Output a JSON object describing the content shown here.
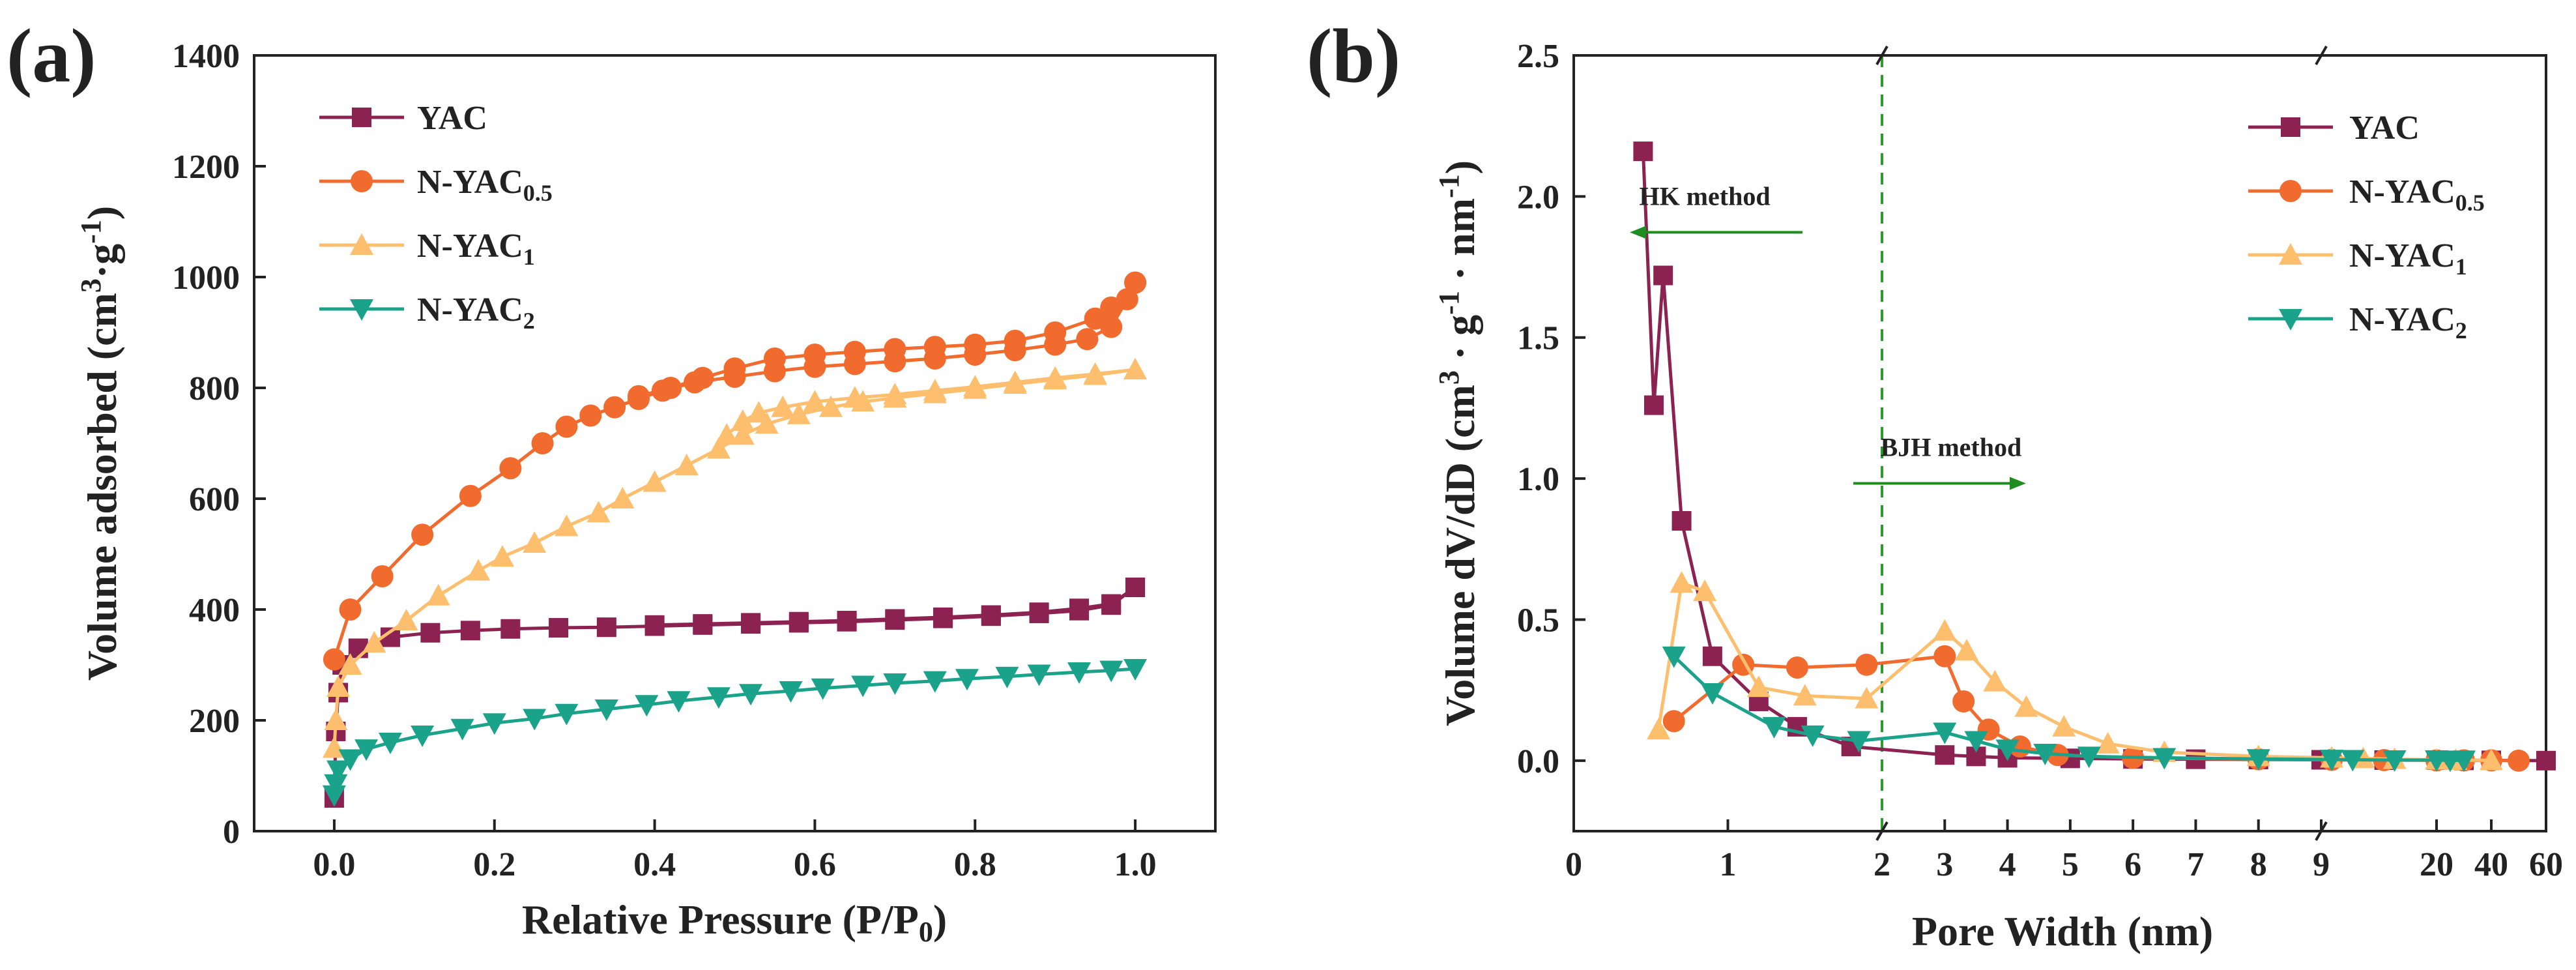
{
  "chart_data": [
    {
      "panel_label": "(a)",
      "type": "line",
      "xlabel_main": "Relative Pressure (P/P",
      "xlabel_sub": "0",
      "xlabel_end": ")",
      "ylabel_prefix": "Volume adsorbed (cm",
      "ylabel_sup1": "3",
      "ylabel_mid": "·g",
      "ylabel_sup2": "-1",
      "ylabel_end": ")",
      "xlim": [
        -0.1,
        1.1
      ],
      "ylim": [
        0,
        1400
      ],
      "xticks": [
        0.0,
        0.2,
        0.4,
        0.6,
        0.8,
        1.0
      ],
      "xtick_labels": [
        "0.0",
        "0.2",
        "0.4",
        "0.6",
        "0.8",
        "1.0"
      ],
      "yticks": [
        0,
        200,
        400,
        600,
        800,
        1000,
        1200,
        1400
      ],
      "ytick_labels": [
        "0",
        "200",
        "400",
        "600",
        "800",
        "1000",
        "1200",
        "1400"
      ],
      "legend_position": "top-left",
      "series": [
        {
          "name": "YAC",
          "name_main": "YAC",
          "name_sub": "",
          "marker": "square",
          "color": "#8B2252",
          "adsorption": [
            [
              0.0,
              60
            ],
            [
              0.002,
              180
            ],
            [
              0.005,
              250
            ],
            [
              0.01,
              300
            ],
            [
              0.03,
              330
            ],
            [
              0.07,
              350
            ],
            [
              0.12,
              358
            ],
            [
              0.17,
              362
            ],
            [
              0.22,
              365
            ],
            [
              0.28,
              367
            ],
            [
              0.34,
              368
            ],
            [
              0.4,
              370
            ],
            [
              0.46,
              372
            ],
            [
              0.52,
              374
            ],
            [
              0.58,
              376
            ],
            [
              0.64,
              378
            ],
            [
              0.7,
              381
            ],
            [
              0.76,
              384
            ],
            [
              0.82,
              388
            ],
            [
              0.88,
              393
            ],
            [
              0.93,
              398
            ],
            [
              0.97,
              408
            ],
            [
              1.0,
              440
            ]
          ],
          "desorption": [
            [
              1.0,
              440
            ],
            [
              0.97,
              410
            ],
            [
              0.93,
              402
            ],
            [
              0.88,
              395
            ],
            [
              0.82,
              390
            ],
            [
              0.76,
              386
            ],
            [
              0.7,
              383
            ],
            [
              0.64,
              380
            ],
            [
              0.58,
              378
            ],
            [
              0.52,
              376
            ],
            [
              0.46,
              374
            ],
            [
              0.4,
              372
            ]
          ]
        },
        {
          "name": "N-YAC0.5",
          "name_main": "N-YAC",
          "name_sub": "0.5",
          "marker": "circle",
          "color": "#F26B2E",
          "adsorption": [
            [
              0.0,
              310
            ],
            [
              0.02,
              400
            ],
            [
              0.06,
              460
            ],
            [
              0.11,
              535
            ],
            [
              0.17,
              605
            ],
            [
              0.22,
              655
            ],
            [
              0.26,
              700
            ],
            [
              0.29,
              730
            ],
            [
              0.32,
              750
            ],
            [
              0.35,
              765
            ],
            [
              0.38,
              780
            ],
            [
              0.41,
              795
            ],
            [
              0.45,
              810
            ],
            [
              0.5,
              820
            ],
            [
              0.55,
              830
            ],
            [
              0.6,
              838
            ],
            [
              0.65,
              843
            ],
            [
              0.7,
              848
            ],
            [
              0.75,
              853
            ],
            [
              0.8,
              860
            ],
            [
              0.85,
              868
            ],
            [
              0.9,
              878
            ],
            [
              0.94,
              888
            ],
            [
              0.97,
              910
            ],
            [
              0.99,
              960
            ],
            [
              1.0,
              990
            ]
          ],
          "desorption": [
            [
              1.0,
              990
            ],
            [
              0.97,
              945
            ],
            [
              0.95,
              925
            ],
            [
              0.9,
              900
            ],
            [
              0.85,
              885
            ],
            [
              0.8,
              878
            ],
            [
              0.75,
              874
            ],
            [
              0.7,
              870
            ],
            [
              0.65,
              865
            ],
            [
              0.6,
              860
            ],
            [
              0.55,
              853
            ],
            [
              0.5,
              835
            ],
            [
              0.46,
              818
            ],
            [
              0.42,
              800
            ],
            [
              0.38,
              785
            ]
          ]
        },
        {
          "name": "N-YAC1",
          "name_main": "N-YAC",
          "name_sub": "1",
          "marker": "triangle-up",
          "color": "#FDBE6E",
          "adsorption": [
            [
              0.0,
              150
            ],
            [
              0.002,
              200
            ],
            [
              0.005,
              260
            ],
            [
              0.02,
              300
            ],
            [
              0.05,
              340
            ],
            [
              0.09,
              380
            ],
            [
              0.13,
              425
            ],
            [
              0.18,
              470
            ],
            [
              0.21,
              495
            ],
            [
              0.25,
              520
            ],
            [
              0.29,
              550
            ],
            [
              0.33,
              575
            ],
            [
              0.36,
              600
            ],
            [
              0.4,
              630
            ],
            [
              0.44,
              660
            ],
            [
              0.48,
              690
            ],
            [
              0.51,
              715
            ],
            [
              0.54,
              735
            ],
            [
              0.58,
              752
            ],
            [
              0.62,
              765
            ],
            [
              0.66,
              775
            ],
            [
              0.7,
              782
            ],
            [
              0.75,
              790
            ],
            [
              0.8,
              798
            ],
            [
              0.85,
              807
            ],
            [
              0.9,
              815
            ],
            [
              0.95,
              823
            ],
            [
              1.0,
              833
            ]
          ],
          "desorption": [
            [
              1.0,
              833
            ],
            [
              0.95,
              825
            ],
            [
              0.9,
              818
            ],
            [
              0.85,
              810
            ],
            [
              0.8,
              802
            ],
            [
              0.75,
              795
            ],
            [
              0.7,
              788
            ],
            [
              0.65,
              782
            ],
            [
              0.6,
              775
            ],
            [
              0.56,
              765
            ],
            [
              0.53,
              755
            ],
            [
              0.51,
              740
            ],
            [
              0.49,
              715
            ]
          ]
        },
        {
          "name": "N-YAC2",
          "name_main": "N-YAC",
          "name_sub": "2",
          "marker": "triangle-down",
          "color": "#1BA28B",
          "adsorption": [
            [
              0.0,
              65
            ],
            [
              0.002,
              85
            ],
            [
              0.005,
              110
            ],
            [
              0.02,
              130
            ],
            [
              0.04,
              148
            ],
            [
              0.07,
              160
            ],
            [
              0.11,
              173
            ],
            [
              0.16,
              185
            ],
            [
              0.2,
              195
            ],
            [
              0.25,
              203
            ],
            [
              0.29,
              212
            ],
            [
              0.34,
              220
            ],
            [
              0.39,
              228
            ],
            [
              0.43,
              235
            ],
            [
              0.48,
              242
            ],
            [
              0.52,
              248
            ],
            [
              0.57,
              253
            ],
            [
              0.61,
              258
            ],
            [
              0.66,
              263
            ],
            [
              0.7,
              267
            ],
            [
              0.75,
              271
            ],
            [
              0.79,
              275
            ],
            [
              0.84,
              279
            ],
            [
              0.88,
              283
            ],
            [
              0.93,
              287
            ],
            [
              0.97,
              290
            ],
            [
              1.0,
              293
            ]
          ],
          "desorption": []
        }
      ]
    },
    {
      "panel_label": "(b)",
      "type": "line",
      "xlabel": "Pore Width (nm)",
      "ylabel_prefix": "Volume dV/dD  (cm",
      "ylabel_sup1": "3",
      "ylabel_mid": " · g",
      "ylabel_sup2": "-1",
      "ylabel_mid2": " · nm",
      "ylabel_sup3": "-1",
      "ylabel_end": ")",
      "ylim": [
        -0.25,
        2.5
      ],
      "yticks": [
        0.0,
        0.5,
        1.0,
        1.5,
        2.0,
        2.5
      ],
      "ytick_labels": [
        "0.0",
        "0.5",
        "1.0",
        "1.5",
        "2.0",
        "2.5"
      ],
      "x_axis_note": "broken axis: 0–2 nm (HK), 2–10 nm, 10–60 nm",
      "xticks": [
        0,
        1,
        2,
        3,
        4,
        5,
        6,
        7,
        8,
        9,
        20,
        40,
        60
      ],
      "xtick_labels": [
        "0",
        "1",
        "2",
        "3",
        "4",
        "5",
        "6",
        "7",
        "8",
        "9",
        "20",
        "40",
        "60"
      ],
      "legend_position": "top-right",
      "annotations": [
        {
          "text": "HK method",
          "x": 0.85,
          "y": 1.97,
          "arrow": "left"
        },
        {
          "text": "BJH method",
          "x": 3.1,
          "y": 1.08,
          "arrow": "right"
        }
      ],
      "divider_x": 2,
      "series": [
        {
          "name": "YAC",
          "name_main": "YAC",
          "name_sub": "",
          "marker": "square",
          "color": "#8B2252",
          "points": [
            [
              0.45,
              2.16
            ],
            [
              0.52,
              1.26
            ],
            [
              0.58,
              1.72
            ],
            [
              0.7,
              0.85
            ],
            [
              0.9,
              0.37
            ],
            [
              1.2,
              0.21
            ],
            [
              1.45,
              0.12
            ],
            [
              1.8,
              0.05
            ],
            [
              3.0,
              0.02
            ],
            [
              3.5,
              0.015
            ],
            [
              4.0,
              0.01
            ],
            [
              5.0,
              0.008
            ],
            [
              6.0,
              0.006
            ],
            [
              7.0,
              0.005
            ],
            [
              8.0,
              0.004
            ],
            [
              9.0,
              0.003
            ],
            [
              15,
              0.002
            ],
            [
              20,
              0.002
            ],
            [
              30,
              0.001
            ],
            [
              40,
              0.001
            ],
            [
              60,
              0.0
            ]
          ]
        },
        {
          "name": "N-YAC0.5",
          "name_main": "N-YAC",
          "name_sub": "0.5",
          "marker": "circle",
          "color": "#F26B2E",
          "points": [
            [
              0.65,
              0.14
            ],
            [
              1.1,
              0.34
            ],
            [
              1.45,
              0.33
            ],
            [
              1.9,
              0.34
            ],
            [
              3.0,
              0.37
            ],
            [
              3.3,
              0.21
            ],
            [
              3.7,
              0.11
            ],
            [
              4.2,
              0.05
            ],
            [
              4.8,
              0.02
            ],
            [
              6.0,
              0.01
            ],
            [
              8.0,
              0.005
            ],
            [
              10,
              0.003
            ],
            [
              15,
              0.002
            ],
            [
              20,
              0.001
            ],
            [
              30,
              0.001
            ],
            [
              40,
              0.001
            ],
            [
              50,
              0.0
            ]
          ]
        },
        {
          "name": "N-YAC1",
          "name_main": "N-YAC",
          "name_sub": "1",
          "marker": "triangle-up",
          "color": "#FDBE6E",
          "points": [
            [
              0.55,
              0.11
            ],
            [
              0.7,
              0.63
            ],
            [
              0.85,
              0.6
            ],
            [
              1.2,
              0.26
            ],
            [
              1.5,
              0.23
            ],
            [
              1.9,
              0.22
            ],
            [
              3.0,
              0.46
            ],
            [
              3.35,
              0.39
            ],
            [
              3.8,
              0.28
            ],
            [
              4.3,
              0.19
            ],
            [
              4.9,
              0.12
            ],
            [
              5.6,
              0.06
            ],
            [
              6.5,
              0.03
            ],
            [
              8.0,
              0.015
            ],
            [
              10,
              0.01
            ],
            [
              13,
              0.008
            ],
            [
              16,
              0.005
            ],
            [
              20,
              0.003
            ],
            [
              27,
              0.002
            ],
            [
              40,
              0.001
            ]
          ]
        },
        {
          "name": "N-YAC2",
          "name_main": "N-YAC",
          "name_sub": "2",
          "marker": "triangle-down",
          "color": "#1BA28B",
          "points": [
            [
              0.65,
              0.37
            ],
            [
              0.9,
              0.24
            ],
            [
              1.3,
              0.12
            ],
            [
              1.55,
              0.09
            ],
            [
              1.85,
              0.07
            ],
            [
              3.0,
              0.1
            ],
            [
              3.5,
              0.07
            ],
            [
              4.0,
              0.04
            ],
            [
              4.6,
              0.025
            ],
            [
              5.3,
              0.015
            ],
            [
              6.5,
              0.01
            ],
            [
              8.0,
              0.006
            ],
            [
              10,
              0.004
            ],
            [
              12,
              0.003
            ],
            [
              16,
              0.002
            ],
            [
              20,
              0.002
            ],
            [
              25,
              0.001
            ],
            [
              30,
              0.001
            ]
          ]
        }
      ]
    }
  ]
}
